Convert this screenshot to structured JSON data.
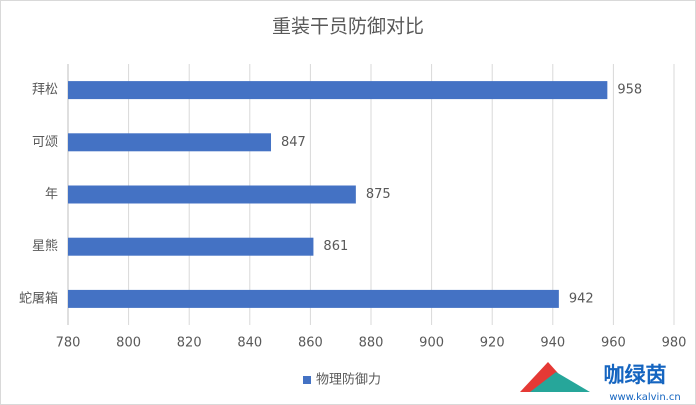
{
  "chart_data": {
    "type": "barh",
    "title": "重装干员防御对比",
    "categories": [
      "拜松",
      "可颂",
      "年",
      "星熊",
      "蛇屠箱"
    ],
    "series": [
      {
        "name": "物理防御力",
        "color": "#4472c4",
        "values": [
          958,
          847,
          875,
          861,
          942
        ]
      }
    ],
    "xlim": [
      780,
      980
    ],
    "xticks": [
      780,
      800,
      820,
      840,
      860,
      880,
      900,
      920,
      940,
      960,
      980
    ],
    "grid": true,
    "legend": "bottom"
  },
  "watermark": {
    "brand": "咖绿茵",
    "url": "www.kalvin.cn"
  }
}
